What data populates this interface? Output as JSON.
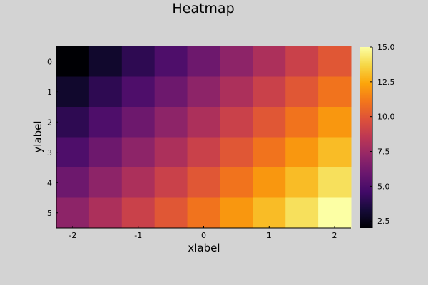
{
  "chart_data": {
    "type": "heatmap",
    "title": "Heatmap",
    "xlabel": "xlabel",
    "ylabel": "ylabel",
    "x_ticks": [
      "-2",
      "-1",
      "0",
      "1",
      "2"
    ],
    "y_ticks": [
      "0",
      "1",
      "2",
      "3",
      "4",
      "5"
    ],
    "x": [
      -2.25,
      -1.75,
      -1.25,
      -0.75,
      -0.25,
      0.25,
      0.75,
      1.25,
      1.75,
      2.25
    ],
    "y": [
      0,
      1,
      2,
      3,
      4,
      5,
      6
    ],
    "values": [
      [
        2,
        3,
        4,
        5,
        6,
        7,
        8,
        9,
        10
      ],
      [
        3,
        4,
        5,
        6,
        7,
        8,
        9,
        10,
        11
      ],
      [
        4,
        5,
        6,
        7,
        8,
        9,
        10,
        11,
        12
      ],
      [
        5,
        6,
        7,
        8,
        9,
        10,
        11,
        12,
        13
      ],
      [
        6,
        7,
        8,
        9,
        10,
        11,
        12,
        13,
        14
      ],
      [
        7,
        8,
        9,
        10,
        11,
        12,
        13,
        14,
        15
      ]
    ],
    "colorbar": {
      "colormap": "inferno",
      "range": [
        2,
        15
      ],
      "ticks": [
        "2.5",
        "5.0",
        "7.5",
        "10.0",
        "12.5",
        "15.0"
      ]
    },
    "grid": false,
    "legend": "colorbar-right"
  }
}
